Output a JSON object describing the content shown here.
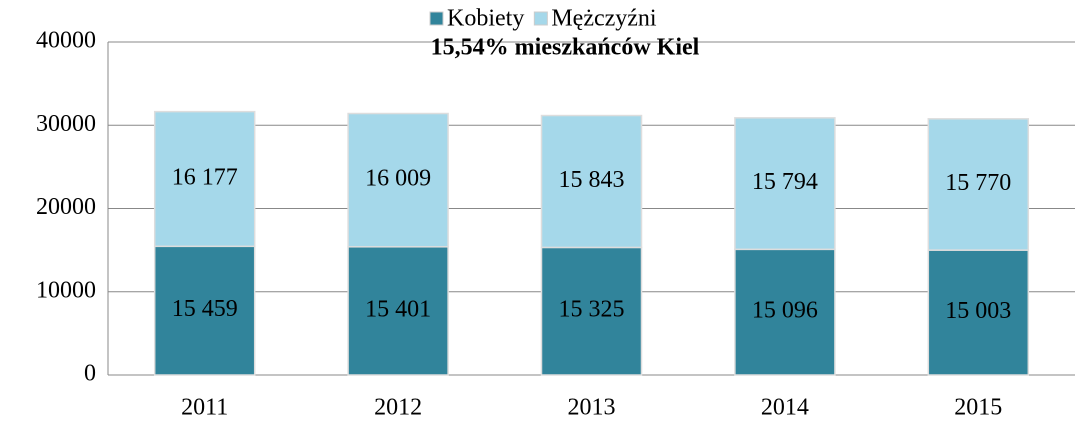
{
  "chart_data": {
    "type": "stacked_bar",
    "title": "15,54% mieszkańców Kiel",
    "categories": [
      "2011",
      "2012",
      "2013",
      "2014",
      "2015"
    ],
    "series": [
      {
        "name": "Kobiety",
        "color": "#31849b",
        "values": [
          15459,
          15401,
          15325,
          15096,
          15003
        ],
        "value_labels": [
          "15 459",
          "15 401",
          "15 325",
          "15 096",
          "15 003"
        ]
      },
      {
        "name": "Mężczyźni",
        "color": "#a5d8ea",
        "values": [
          16177,
          16009,
          15843,
          15794,
          15770
        ],
        "value_labels": [
          "16 177",
          "16 009",
          "15 843",
          "15 794",
          "15 770"
        ]
      }
    ],
    "ylim": [
      0,
      40000
    ],
    "yticks": [
      0,
      10000,
      20000,
      30000,
      40000
    ],
    "grid": true,
    "legend": "top"
  }
}
